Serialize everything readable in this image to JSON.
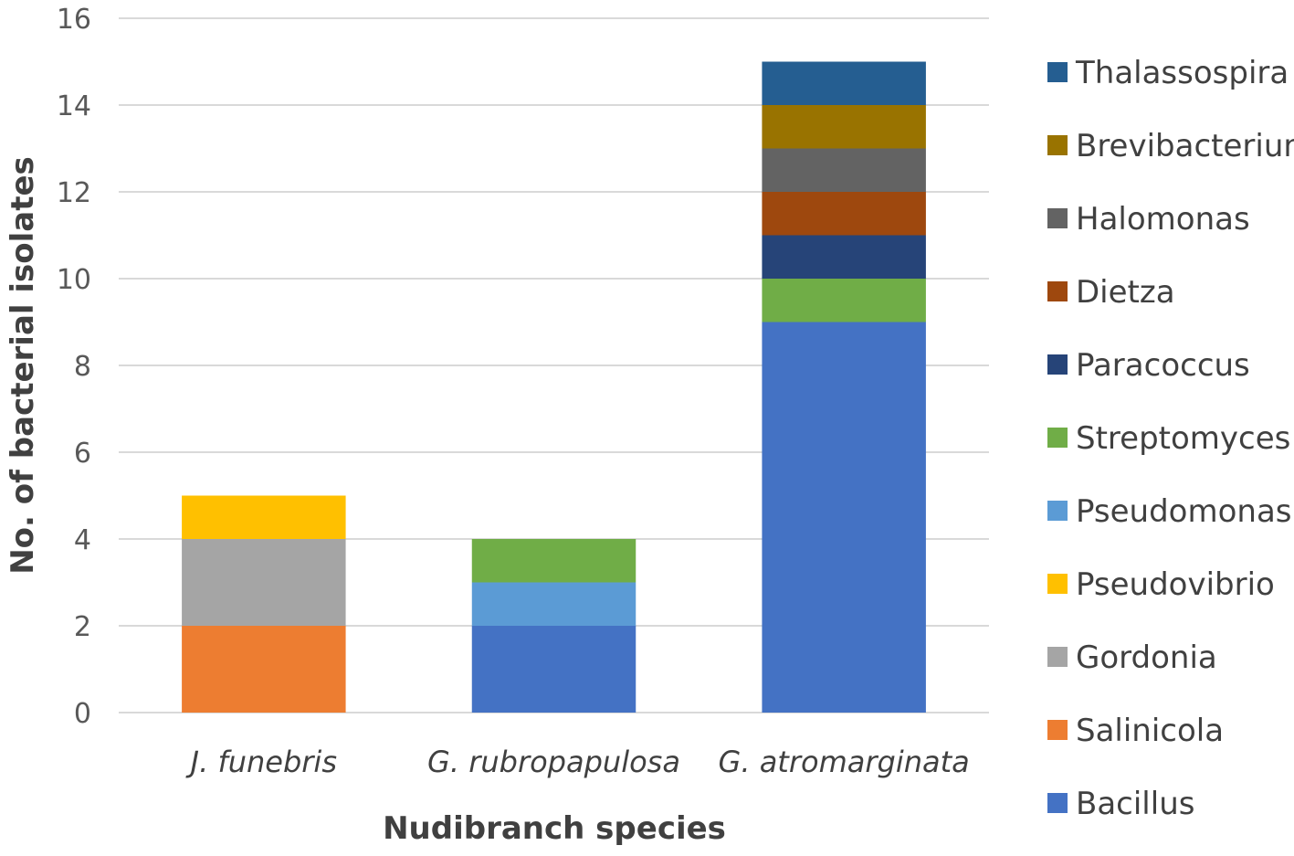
{
  "chart_data": {
    "type": "bar",
    "stacked": true,
    "title": "",
    "xlabel": "Nudibranch species",
    "ylabel": "No. of bacterial isolates",
    "ylim": [
      0,
      16
    ],
    "yticks": [
      0,
      2,
      4,
      6,
      8,
      10,
      12,
      14,
      16
    ],
    "grid": true,
    "legend_position": "right",
    "categories": [
      "J. funebris",
      "G. rubropapulosa",
      "G. atromarginata"
    ],
    "series": [
      {
        "name": "Bacillus",
        "color": "#4472C4",
        "values": [
          0,
          2,
          9
        ]
      },
      {
        "name": "Salinicola",
        "color": "#ED7D31",
        "values": [
          2,
          0,
          0
        ]
      },
      {
        "name": "Gordonia",
        "color": "#A5A5A5",
        "values": [
          2,
          0,
          0
        ]
      },
      {
        "name": "Pseudovibrio",
        "color": "#FFC000",
        "values": [
          1,
          0,
          0
        ]
      },
      {
        "name": "Pseudomonas",
        "color": "#5B9BD5",
        "values": [
          0,
          1,
          0
        ]
      },
      {
        "name": "Streptomyces",
        "color": "#70AD47",
        "values": [
          0,
          1,
          1
        ]
      },
      {
        "name": "Paracoccus",
        "color": "#264478",
        "values": [
          0,
          0,
          1
        ]
      },
      {
        "name": "Dietza",
        "color": "#9E480E",
        "values": [
          0,
          0,
          1
        ]
      },
      {
        "name": "Halomonas",
        "color": "#636363",
        "values": [
          0,
          0,
          1
        ]
      },
      {
        "name": "Brevibacterium",
        "color": "#997300",
        "values": [
          0,
          0,
          1
        ]
      },
      {
        "name": "Thalassospira",
        "color": "#255E91",
        "values": [
          0,
          0,
          1
        ]
      }
    ]
  }
}
